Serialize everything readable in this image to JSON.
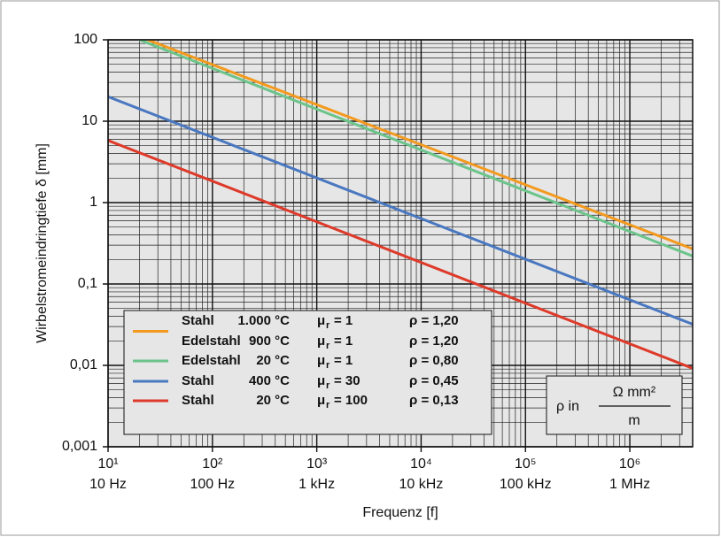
{
  "chart_data": {
    "type": "line",
    "y_label": "Wirbelstromeindringtiefe δ [mm]",
    "x_label": "Frequenz [f]",
    "log_x": true,
    "log_y": true,
    "grid": true,
    "xlim": [
      10,
      4000000
    ],
    "ylim": [
      0.001,
      100
    ],
    "xticks": [
      {
        "value": 10,
        "label": "10¹"
      },
      {
        "value": 100,
        "label": "10²"
      },
      {
        "value": 1000,
        "label": "10³"
      },
      {
        "value": 10000,
        "label": "10⁴"
      },
      {
        "value": 100000,
        "label": "10⁵"
      },
      {
        "value": 1000000,
        "label": "10⁶"
      }
    ],
    "x_unit_labels": [
      "10 Hz",
      "100 Hz",
      "1 kHz",
      "10 kHz",
      "100 kHz",
      "1 MHz"
    ],
    "yticks": [
      {
        "value": 0.001,
        "label": "0,001"
      },
      {
        "value": 0.01,
        "label": "0,01"
      },
      {
        "value": 0.1,
        "label": "0,1"
      },
      1,
      10,
      100
    ],
    "series": [
      {
        "color": "#f39a1e",
        "x": [
          24,
          4000000
        ],
        "values": [
          100,
          0.27
        ]
      },
      {
        "color": "#6cc48a",
        "x": [
          20,
          4000000
        ],
        "values": [
          100,
          0.22
        ]
      },
      {
        "color": "#4a78c0",
        "x": [
          10,
          4000000
        ],
        "values": [
          20,
          0.032
        ]
      },
      {
        "color": "#de3a2a",
        "x": [
          10,
          4000000
        ],
        "values": [
          5.8,
          0.0092
        ]
      }
    ],
    "legend": {
      "rows": [
        {
          "material": "Stahl",
          "temp": "1.000 °C",
          "mu": "μ",
          "mu_sub": "r",
          "mu_val": "= 1",
          "rho": "ρ = 1,20"
        },
        {
          "material": "Edelstahl",
          "temp": "900 °C",
          "mu": "μ",
          "mu_sub": "r",
          "mu_val": "= 1",
          "rho": "ρ = 1,20"
        },
        {
          "material": "Edelstahl",
          "temp": "20 °C",
          "mu": "μ",
          "mu_sub": "r",
          "mu_val": "= 1",
          "rho": "ρ = 0,80"
        },
        {
          "material": "Stahl",
          "temp": "400 °C",
          "mu": "μ",
          "mu_sub": "r",
          "mu_val": "= 30",
          "rho": "ρ = 0,45"
        },
        {
          "material": "Stahl",
          "temp": "20 °C",
          "mu": "μ",
          "mu_sub": "r",
          "mu_val": "= 100",
          "rho": "ρ = 0,13"
        }
      ]
    },
    "unit_note": {
      "prefix": "ρ in",
      "numerator": "Ω mm²",
      "denominator": "m"
    }
  }
}
